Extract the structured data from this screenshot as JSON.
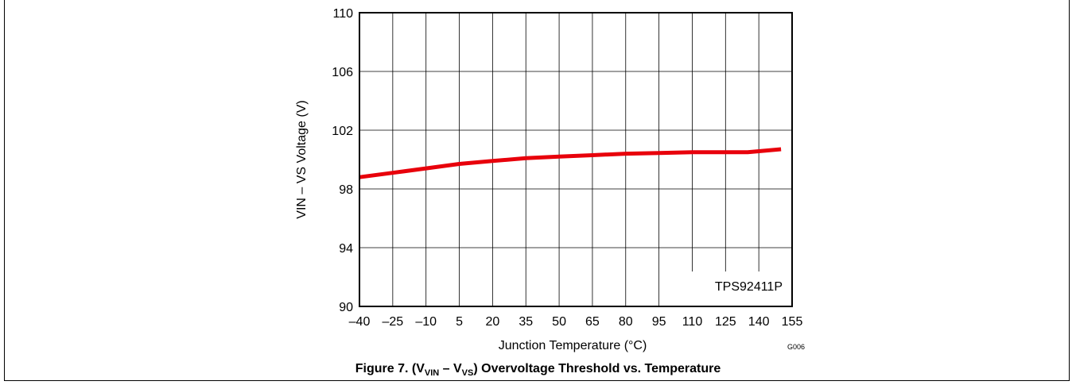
{
  "chart_data": {
    "type": "line",
    "xlabel": "Junction Temperature (°C)",
    "ylabel": "VIN – VS Voltage (V)",
    "xlim": [
      -40,
      155
    ],
    "ylim": [
      90,
      110
    ],
    "x_ticks": [
      "–40",
      "–25",
      "–10",
      "5",
      "20",
      "35",
      "50",
      "65",
      "80",
      "95",
      "110",
      "125",
      "140",
      "155"
    ],
    "y_ticks": [
      "90",
      "94",
      "98",
      "102",
      "106",
      "110"
    ],
    "grid": true,
    "annotation": "TPS92411P",
    "code": "G006",
    "series": [
      {
        "x": [
          -40,
          -25,
          -10,
          5,
          20,
          35,
          50,
          65,
          80,
          95,
          110,
          125,
          135,
          150
        ],
        "y": [
          98.8,
          99.1,
          99.4,
          99.7,
          99.9,
          100.1,
          100.2,
          100.3,
          100.4,
          100.45,
          100.5,
          100.5,
          100.5,
          100.7
        ],
        "color": "#e8000b"
      }
    ]
  },
  "caption": {
    "prefix": "Figure 7. (V",
    "sub1": "VIN",
    "mid": " – V",
    "sub2": "VS",
    "suffix": ") Overvoltage Threshold vs. Temperature"
  }
}
